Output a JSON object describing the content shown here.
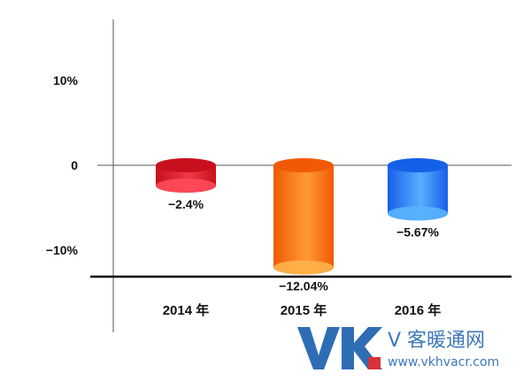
{
  "chart_data": {
    "type": "bar",
    "style": "3d-cylinder",
    "categories": [
      "2014 年",
      "2015 年",
      "2016 年"
    ],
    "values": [
      -2.4,
      -12.04,
      -5.67
    ],
    "data_labels": [
      "−2.4%",
      "−12.04%",
      "−5.67%"
    ],
    "colors": [
      {
        "light": "#f0394a",
        "dark": "#c8101c",
        "top": "#ff4a5a"
      },
      {
        "light": "#ff9a33",
        "dark": "#f05a05",
        "top": "#ffb24d"
      },
      {
        "light": "#5aaeff",
        "dark": "#1560e8",
        "top": "#58b4ff"
      }
    ],
    "y_ticks": [
      {
        "value": 10,
        "label": "10%"
      },
      {
        "value": 0,
        "label": "0"
      },
      {
        "value": -10,
        "label": "−10%"
      }
    ],
    "ylim": [
      -15.5,
      18
    ],
    "grid": false,
    "legend": "none"
  },
  "watermark": {
    "logo_text": "VK",
    "name": "V 客暖通网",
    "url": "www.vkhvacr.com",
    "colors": {
      "v": "#2e6db4",
      "k": "#d8323c",
      "text": "#3d78b8"
    }
  }
}
